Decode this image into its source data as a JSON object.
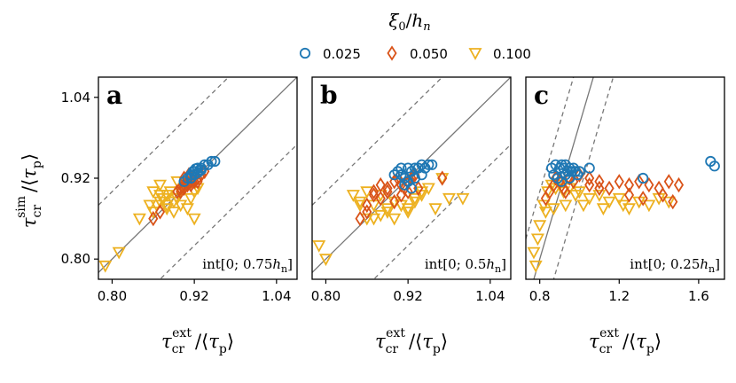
{
  "legend": {
    "title": "ξ0/hn",
    "entries": [
      {
        "label": "0.025",
        "color": "#1f78b4",
        "marker": "circle"
      },
      {
        "label": "0.050",
        "color": "#d95319",
        "marker": "diamond"
      },
      {
        "label": "0.100",
        "color": "#edb120",
        "marker": "triangle-down"
      }
    ]
  },
  "y_axis_label": "τcr^sim / ⟨τp⟩",
  "chart_data": [
    {
      "type": "scatter",
      "panel": "a",
      "annotation": "int[0; 0.75hn]",
      "xlabel": "τcr^ext / ⟨τp⟩",
      "ylabel": "τcr^sim / ⟨τp⟩",
      "xlim": [
        0.78,
        1.07
      ],
      "ylim": [
        0.77,
        1.07
      ],
      "xticks": [
        "0.80",
        "0.92",
        "1.04"
      ],
      "yticks": [
        "0.80",
        "0.92",
        "1.04"
      ],
      "xtick_values": [
        0.8,
        0.92,
        1.04
      ],
      "ytick_values": [
        0.8,
        0.92,
        1.04
      ],
      "ref_lines": [
        {
          "style": "solid",
          "slope": 1.0,
          "intercept": 0.0
        },
        {
          "style": "dashed",
          "slope": 1.0,
          "intercept": 0.1
        },
        {
          "style": "dashed",
          "slope": 1.0,
          "intercept": -0.1
        }
      ],
      "series": [
        {
          "name": "0.025",
          "x": [
            0.905,
            0.91,
            0.915,
            0.92,
            0.925,
            0.93,
            0.935,
            0.94,
            0.945,
            0.95,
            0.915,
            0.92,
            0.925,
            0.93,
            0.918,
            0.922
          ],
          "y": [
            0.915,
            0.92,
            0.925,
            0.93,
            0.935,
            0.935,
            0.94,
            0.94,
            0.945,
            0.945,
            0.92,
            0.925,
            0.928,
            0.932,
            0.93,
            0.934
          ]
        },
        {
          "name": "0.050",
          "x": [
            0.9,
            0.905,
            0.91,
            0.915,
            0.92,
            0.925,
            0.93,
            0.895,
            0.9,
            0.905,
            0.91,
            0.915,
            0.92,
            0.925,
            0.93,
            0.935,
            0.86,
            0.87,
            0.905,
            0.912
          ],
          "y": [
            0.905,
            0.91,
            0.915,
            0.915,
            0.92,
            0.92,
            0.925,
            0.9,
            0.9,
            0.905,
            0.91,
            0.91,
            0.915,
            0.915,
            0.925,
            0.93,
            0.86,
            0.87,
            0.92,
            0.925
          ]
        },
        {
          "name": "0.100",
          "x": [
            0.79,
            0.81,
            0.84,
            0.855,
            0.86,
            0.865,
            0.87,
            0.875,
            0.88,
            0.885,
            0.89,
            0.895,
            0.9,
            0.905,
            0.91,
            0.915,
            0.92,
            0.86,
            0.87,
            0.88,
            0.89,
            0.9,
            0.91,
            0.92,
            0.925,
            0.87,
            0.88,
            0.895
          ],
          "y": [
            0.79,
            0.81,
            0.86,
            0.88,
            0.87,
            0.88,
            0.895,
            0.89,
            0.88,
            0.9,
            0.885,
            0.89,
            0.9,
            0.905,
            0.91,
            0.89,
            0.9,
            0.9,
            0.91,
            0.875,
            0.87,
            0.88,
            0.875,
            0.86,
            0.905,
            0.885,
            0.895,
            0.915
          ]
        }
      ]
    },
    {
      "type": "scatter",
      "panel": "b",
      "annotation": "int[0; 0.5hn]",
      "xlabel": "τcr^ext / ⟨τp⟩",
      "ylabel": "",
      "xlim": [
        0.78,
        1.07
      ],
      "ylim": [
        0.77,
        1.07
      ],
      "xticks": [
        "0.80",
        "0.92",
        "1.04"
      ],
      "yticks": [],
      "xtick_values": [
        0.8,
        0.92,
        1.04
      ],
      "ytick_values": [],
      "ref_lines": [
        {
          "style": "solid",
          "slope": 1.0,
          "intercept": 0.0
        },
        {
          "style": "dashed",
          "slope": 1.0,
          "intercept": 0.1
        },
        {
          "style": "dashed",
          "slope": 1.0,
          "intercept": -0.1
        }
      ],
      "series": [
        {
          "name": "0.025",
          "x": [
            0.9,
            0.905,
            0.91,
            0.915,
            0.92,
            0.925,
            0.93,
            0.935,
            0.94,
            0.945,
            0.95,
            0.955,
            0.91,
            0.92,
            0.93,
            0.94,
            0.915,
            0.925
          ],
          "y": [
            0.925,
            0.93,
            0.935,
            0.92,
            0.935,
            0.93,
            0.935,
            0.935,
            0.94,
            0.935,
            0.94,
            0.94,
            0.925,
            0.915,
            0.92,
            0.925,
            0.91,
            0.905
          ]
        },
        {
          "name": "0.050",
          "x": [
            0.85,
            0.86,
            0.87,
            0.88,
            0.89,
            0.9,
            0.905,
            0.91,
            0.915,
            0.92,
            0.925,
            0.93,
            0.86,
            0.87,
            0.88,
            0.9,
            0.92,
            0.935,
            0.97,
            0.89,
            0.91
          ],
          "y": [
            0.86,
            0.87,
            0.9,
            0.91,
            0.905,
            0.915,
            0.92,
            0.91,
            0.905,
            0.915,
            0.92,
            0.925,
            0.88,
            0.895,
            0.89,
            0.885,
            0.9,
            0.905,
            0.92,
            0.9,
            0.895
          ]
        },
        {
          "name": "0.100",
          "x": [
            0.79,
            0.8,
            0.84,
            0.85,
            0.86,
            0.87,
            0.87,
            0.88,
            0.89,
            0.9,
            0.91,
            0.92,
            0.93,
            0.94,
            0.95,
            0.96,
            0.98,
            1.0,
            0.85,
            0.88,
            0.9,
            0.92,
            0.86,
            0.89,
            0.91,
            0.94,
            0.97,
            0.93
          ],
          "y": [
            0.82,
            0.8,
            0.895,
            0.885,
            0.9,
            0.86,
            0.88,
            0.865,
            0.87,
            0.885,
            0.88,
            0.875,
            0.89,
            0.9,
            0.905,
            0.875,
            0.89,
            0.89,
            0.88,
            0.895,
            0.86,
            0.87,
            0.86,
            0.875,
            0.88,
            0.895,
            0.92,
            0.885
          ]
        }
      ]
    },
    {
      "type": "scatter",
      "panel": "c",
      "annotation": "int[0; 0.25hn]",
      "xlabel": "τcr^ext / ⟨τp⟩",
      "ylabel": "",
      "xlim": [
        0.73,
        1.73
      ],
      "ylim": [
        0.77,
        1.07
      ],
      "xticks": [
        "0.8",
        "1.2",
        "1.6"
      ],
      "yticks": [],
      "xtick_values": [
        0.8,
        1.2,
        1.6
      ],
      "ytick_values": [],
      "ref_lines": [
        {
          "style": "solid",
          "slope": 1.0,
          "intercept": 0.0
        },
        {
          "style": "dashed",
          "slope": 1.0,
          "intercept": 0.1
        },
        {
          "style": "dashed",
          "slope": 1.0,
          "intercept": -0.1
        }
      ],
      "series": [
        {
          "name": "0.025",
          "x": [
            0.86,
            0.88,
            0.9,
            0.91,
            0.92,
            0.93,
            0.94,
            0.95,
            0.96,
            0.97,
            0.98,
            0.99,
            1.0,
            1.05,
            0.87,
            0.89,
            0.91,
            0.93,
            0.95,
            1.32,
            1.66,
            1.68
          ],
          "y": [
            0.935,
            0.94,
            0.935,
            0.94,
            0.935,
            0.94,
            0.93,
            0.935,
            0.93,
            0.935,
            0.93,
            0.925,
            0.93,
            0.935,
            0.925,
            0.92,
            0.915,
            0.925,
            0.92,
            0.92,
            0.945,
            0.938
          ]
        },
        {
          "name": "0.050",
          "x": [
            0.83,
            0.85,
            0.87,
            0.88,
            0.9,
            0.92,
            0.95,
            1.0,
            1.05,
            1.1,
            1.15,
            1.2,
            1.25,
            1.3,
            1.35,
            1.4,
            1.45,
            1.5,
            1.25,
            1.32,
            1.42,
            1.47,
            1.1,
            1.05,
            0.97,
            0.93
          ],
          "y": [
            0.89,
            0.9,
            0.91,
            0.92,
            0.915,
            0.905,
            0.92,
            0.925,
            0.91,
            0.915,
            0.905,
            0.915,
            0.91,
            0.915,
            0.91,
            0.905,
            0.915,
            0.91,
            0.895,
            0.89,
            0.895,
            0.885,
            0.905,
            0.92,
            0.915,
            0.9
          ]
        },
        {
          "name": "0.100",
          "x": [
            0.77,
            0.78,
            0.79,
            0.8,
            0.82,
            0.84,
            0.86,
            0.88,
            0.9,
            0.92,
            0.95,
            0.98,
            1.0,
            1.05,
            1.1,
            1.15,
            1.2,
            1.25,
            1.3,
            1.35,
            1.4,
            1.45,
            0.83,
            0.87,
            0.93,
            1.02,
            1.12,
            1.22
          ],
          "y": [
            0.81,
            0.79,
            0.83,
            0.85,
            0.88,
            0.9,
            0.91,
            0.905,
            0.91,
            0.9,
            0.905,
            0.895,
            0.9,
            0.89,
            0.895,
            0.885,
            0.89,
            0.875,
            0.885,
            0.88,
            0.89,
            0.885,
            0.87,
            0.875,
            0.88,
            0.88,
            0.875,
            0.88
          ]
        }
      ]
    }
  ]
}
